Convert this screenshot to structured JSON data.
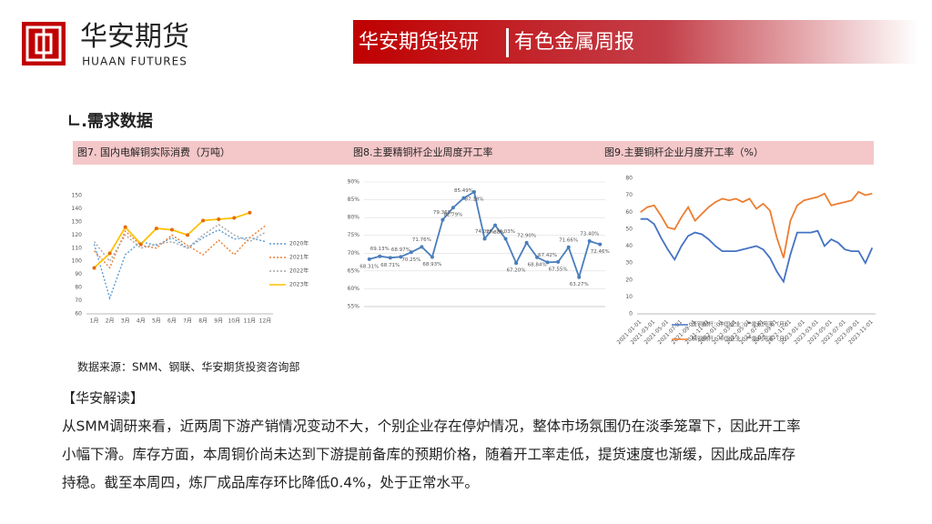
{
  "header": {
    "logo_cn": "华安期货",
    "logo_en": "HUAAN FUTURES",
    "banner_left": "华安期货投研",
    "banner_right": "有色金属周报"
  },
  "section_title": "∟.需求数据",
  "captions": [
    "图7. 国内电解铜实际消费（万吨）",
    "图8.主要精铜杆企业周度开工率",
    "图9.主要铜杆企业月度开工率（%）"
  ],
  "chart_data": [
    {
      "type": "line",
      "categories": [
        "1月",
        "2月",
        "3月",
        "4月",
        "5月",
        "6月",
        "7月",
        "8月",
        "9月",
        "10月",
        "11月",
        "12月"
      ],
      "ylim": [
        60,
        150
      ],
      "yticks": [
        60,
        70,
        80,
        90,
        100,
        110,
        120,
        130,
        140,
        150
      ],
      "grid": false,
      "series": [
        {
          "name": "2020年",
          "color": "#5b9bd5",
          "dash": true,
          "values": [
            113,
            72,
            105,
            115,
            112,
            118,
            110,
            118,
            124,
            117,
            118,
            115
          ]
        },
        {
          "name": "2021年",
          "color": "#ed7d31",
          "dash": true,
          "values": [
            108,
            95,
            123,
            112,
            110,
            120,
            112,
            105,
            116,
            105,
            118,
            127
          ]
        },
        {
          "name": "2022年",
          "color": "#a5a5a5",
          "dash": true,
          "values": [
            115,
            100,
            120,
            110,
            113,
            115,
            110,
            120,
            128,
            120,
            115,
            122
          ]
        },
        {
          "name": "2023年",
          "color": "#ffc000",
          "marker": "#e36c09",
          "values": [
            95,
            106,
            126,
            113,
            125,
            124,
            120,
            131,
            132,
            133,
            137,
            null
          ]
        }
      ]
    },
    {
      "type": "line",
      "categories": [
        null,
        null,
        null,
        null,
        null,
        null,
        null,
        null,
        null,
        null,
        null,
        null,
        null,
        null,
        null,
        null,
        null,
        null,
        null,
        null,
        null,
        null,
        null
      ],
      "ylim": [
        55,
        90
      ],
      "yticks": [
        {
          "value": 55,
          "label": "55%"
        },
        {
          "value": 60,
          "label": "60%"
        },
        {
          "value": 65,
          "label": "65%"
        },
        {
          "value": 70,
          "label": "70%"
        },
        {
          "value": 75,
          "label": "75%"
        },
        {
          "value": 80,
          "label": "80%"
        },
        {
          "value": 85,
          "label": "85%"
        },
        {
          "value": 90,
          "label": "90%"
        }
      ],
      "grid": true,
      "series": [
        {
          "color": "#4a7ebb",
          "marker": "#4a7ebb",
          "values": [
            68.31,
            69.13,
            68.71,
            68.97,
            70.25,
            71.76,
            68.93,
            79.36,
            82.79,
            85.49,
            87.18,
            74.02,
            77.83,
            74.03,
            67.2,
            72.9,
            68.84,
            67.42,
            67.55,
            71.66,
            63.27,
            73.4,
            72.46
          ],
          "value_labels": [
            "68.31%",
            "69.13%",
            "68.71%",
            "68.97%",
            "70.25%",
            "71.76%",
            "68.93%",
            "79.36%",
            "82.79%",
            "85.49%",
            "87.18%",
            "74.02%",
            "77.83%",
            "74.03%",
            "67.20%",
            "72.90%",
            "68.84%",
            "67.42%",
            "67.55%",
            "71.66%",
            "63.27%",
            "73.40%",
            "72.46%"
          ]
        }
      ]
    },
    {
      "type": "line",
      "categories": [
        "2021-01-01",
        null,
        "2021-03-01",
        null,
        "2021-05-01",
        null,
        "2021-07-01",
        null,
        "2021-09-01",
        null,
        "2021-11-01",
        null,
        "2022-01-01",
        null,
        "2022-03-01",
        null,
        "2022-05-01",
        null,
        "2022-07-01",
        null,
        "2022-09-01",
        null,
        "2022-11-01",
        null,
        "2023-01-01",
        null,
        "2023-03-01",
        null,
        "2023-05-01",
        null,
        "2023-07-01",
        null,
        "2023-09-01",
        null,
        "2023-11-01"
      ],
      "ylim": [
        0,
        80
      ],
      "yticks": [
        0,
        10,
        20,
        30,
        40,
        50,
        60,
        70,
        80
      ],
      "grid": false,
      "series": [
        {
          "name": "废铜制杆：中国企业：产能利用率（月）",
          "color": "#4472c4",
          "values": [
            56,
            56,
            53,
            45,
            38,
            32,
            40,
            46,
            48,
            47,
            44,
            40,
            37,
            37,
            37,
            38,
            39,
            40,
            38,
            33,
            25,
            19,
            35,
            48,
            48,
            48,
            49,
            40,
            44,
            42,
            38,
            37,
            37,
            30,
            39
          ]
        },
        {
          "name": "精铜制杆：中国企业：产能利用率（月）",
          "color": "#ed7d31",
          "values": [
            60,
            63,
            64,
            58,
            51,
            50,
            57,
            63,
            55,
            59,
            63,
            66,
            68,
            67,
            68,
            66,
            68,
            62,
            65,
            61,
            45,
            33,
            55,
            64,
            67,
            68,
            69,
            71,
            64,
            65,
            66,
            67,
            72,
            70,
            71
          ]
        }
      ]
    }
  ],
  "source": "数据来源：SMM、钢联、华安期货投资咨询部",
  "comment_title": "【华安解读】",
  "comment_lines": [
    "从SMM调研来看，近两周下游产销情况变动不大，个别企业存在停炉情况，整体市场氛围仍在淡季笼罩下，因此开工率",
    "小幅下滑。库存方面，本周铜价尚未达到下游提前备库的预期价格，随着开工率走低，提货速度也渐缓，因此成品库存",
    "持稳。截至本周四，炼厂成品库存环比降低0.4%，处于正常水平。"
  ]
}
